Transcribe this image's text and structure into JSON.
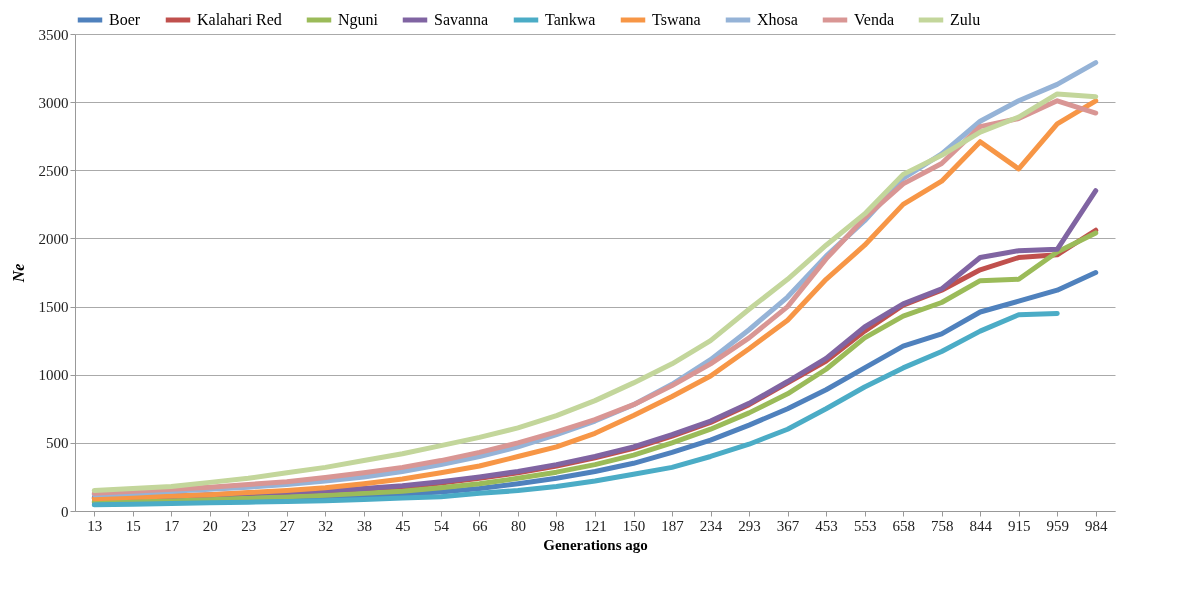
{
  "chart_data": {
    "type": "line",
    "xlabel": "Generations ago",
    "ylabel": "Ne",
    "categories": [
      "13",
      "15",
      "17",
      "20",
      "23",
      "27",
      "32",
      "38",
      "45",
      "54",
      "66",
      "80",
      "98",
      "121",
      "150",
      "187",
      "234",
      "293",
      "367",
      "453",
      "553",
      "658",
      "758",
      "844",
      "915",
      "959",
      "984"
    ],
    "ylim": [
      0,
      3500
    ],
    "yticks": [
      0,
      500,
      1000,
      1500,
      2000,
      2500,
      3000,
      3500
    ],
    "grid": "y",
    "legend": "top",
    "line_style": "solid",
    "series": [
      {
        "name": "Boer",
        "color": "#4f81bd",
        "values": [
          60,
          65,
          70,
          75,
          85,
          90,
          100,
          110,
          125,
          140,
          165,
          200,
          240,
          290,
          350,
          430,
          520,
          630,
          750,
          890,
          1050,
          1210,
          1300,
          1460,
          1540,
          1620,
          1750
        ]
      },
      {
        "name": "Kalahari Red",
        "color": "#c0504d",
        "values": [
          90,
          95,
          100,
          110,
          120,
          130,
          140,
          155,
          175,
          205,
          240,
          280,
          330,
          390,
          460,
          550,
          650,
          780,
          940,
          1100,
          1320,
          1510,
          1620,
          1770,
          1860,
          1880,
          2060
        ]
      },
      {
        "name": "Nguni",
        "color": "#9bbb59",
        "values": [
          70,
          75,
          80,
          90,
          95,
          105,
          115,
          130,
          145,
          170,
          200,
          240,
          285,
          340,
          410,
          500,
          600,
          720,
          860,
          1040,
          1270,
          1430,
          1530,
          1690,
          1700,
          1900,
          2040
        ]
      },
      {
        "name": "Savanna",
        "color": "#8064a2",
        "values": [
          100,
          105,
          110,
          120,
          130,
          140,
          150,
          165,
          185,
          215,
          250,
          290,
          340,
          400,
          470,
          560,
          660,
          790,
          950,
          1120,
          1350,
          1520,
          1630,
          1860,
          1910,
          1920,
          2350
        ]
      },
      {
        "name": "Tankwa",
        "color": "#4bacc6",
        "values": [
          45,
          50,
          55,
          60,
          65,
          70,
          75,
          85,
          95,
          105,
          130,
          150,
          180,
          220,
          270,
          320,
          400,
          490,
          600,
          750,
          910,
          1050,
          1170,
          1320,
          1440,
          1450,
          null
        ]
      },
      {
        "name": "Tswana",
        "color": "#f79646",
        "values": [
          90,
          100,
          110,
          120,
          135,
          150,
          170,
          200,
          235,
          280,
          330,
          400,
          470,
          570,
          700,
          840,
          990,
          1190,
          1400,
          1700,
          1950,
          2250,
          2420,
          2710,
          2510,
          2840,
          3010
        ]
      },
      {
        "name": "Xhosa",
        "color": "#95b3d7",
        "values": [
          120,
          130,
          145,
          160,
          175,
          195,
          220,
          250,
          290,
          340,
          400,
          470,
          560,
          660,
          780,
          930,
          1110,
          1330,
          1570,
          1870,
          2130,
          2440,
          2620,
          2860,
          3010,
          3130,
          3290
        ]
      },
      {
        "name": "Venda",
        "color": "#d99694",
        "values": [
          130,
          145,
          160,
          175,
          195,
          215,
          245,
          280,
          320,
          370,
          430,
          500,
          580,
          670,
          780,
          920,
          1080,
          1270,
          1500,
          1850,
          2150,
          2400,
          2550,
          2820,
          2880,
          3010,
          2920
        ]
      },
      {
        "name": "Zulu",
        "color": "#c3d69b",
        "values": [
          150,
          165,
          180,
          210,
          240,
          280,
          320,
          370,
          420,
          480,
          540,
          610,
          700,
          810,
          940,
          1080,
          1250,
          1480,
          1700,
          1950,
          2180,
          2470,
          2610,
          2780,
          2890,
          3060,
          3040
        ]
      }
    ]
  }
}
